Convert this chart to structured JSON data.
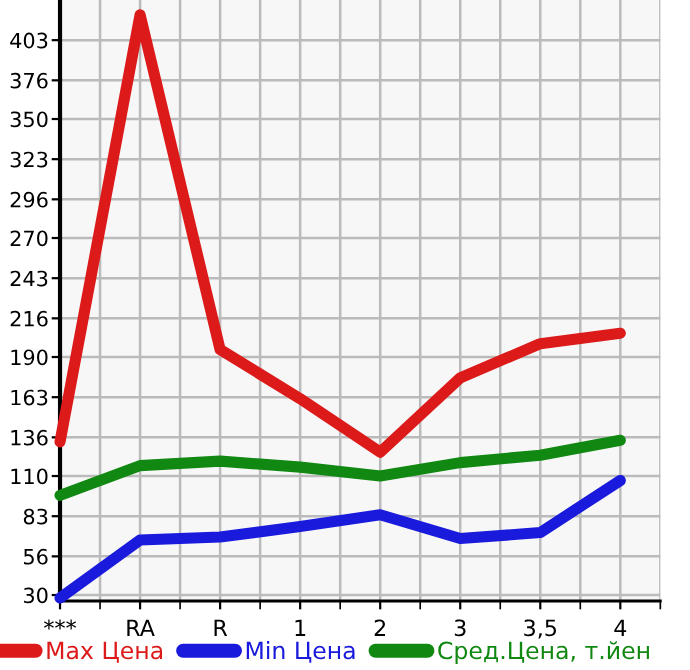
{
  "chart_data": {
    "type": "line",
    "categories": [
      "***",
      "RA",
      "R",
      "1",
      "2",
      "3",
      "3,5",
      "4"
    ],
    "series": [
      {
        "name": "Max Цена",
        "color": "#dd1a1a",
        "values": [
          133,
          420,
          195,
          162,
          126,
          176,
          199,
          206
        ]
      },
      {
        "name": "Min Цена",
        "color": "#1a1add",
        "values": [
          28,
          67,
          69,
          76,
          84,
          68,
          72,
          107
        ]
      },
      {
        "name": "Сред.Цена, т.йен",
        "color": "#118811",
        "values": [
          97,
          117,
          120,
          116,
          110,
          119,
          124,
          134
        ]
      }
    ],
    "ylim": [
      26,
      430
    ],
    "yticks": [
      30,
      56,
      83,
      110,
      136,
      163,
      190,
      216,
      243,
      270,
      296,
      323,
      350,
      376,
      403
    ],
    "grid": true,
    "legend": "bottom",
    "marker": "none",
    "line_style": "solid"
  }
}
